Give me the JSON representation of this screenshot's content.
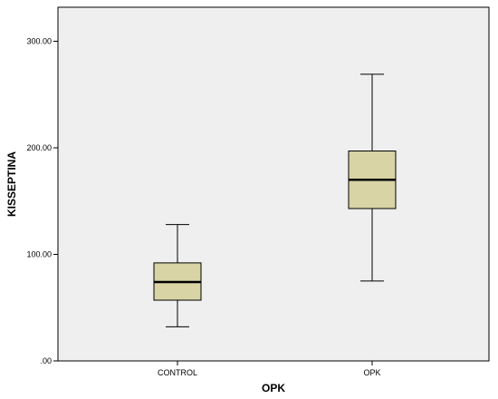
{
  "chart_data": {
    "type": "boxplot",
    "xlabel": "OPK",
    "ylabel": "KISSEPTINA",
    "categories": [
      "CONTROL",
      "OPK"
    ],
    "ylim": [
      0,
      330
    ],
    "yticks": [
      0,
      100,
      200,
      300
    ],
    "ytick_labels": [
      ".00",
      "100.00",
      "200.00",
      "300.00"
    ],
    "grid": false,
    "plot_background": "#efefef",
    "box_fill": "#d8d4a6",
    "boxes": [
      {
        "category": "CONTROL",
        "min": 32,
        "q1": 57,
        "median": 74,
        "q3": 92,
        "max": 128
      },
      {
        "category": "OPK",
        "min": 75,
        "q1": 143,
        "median": 170,
        "q3": 197,
        "max": 269
      }
    ]
  }
}
